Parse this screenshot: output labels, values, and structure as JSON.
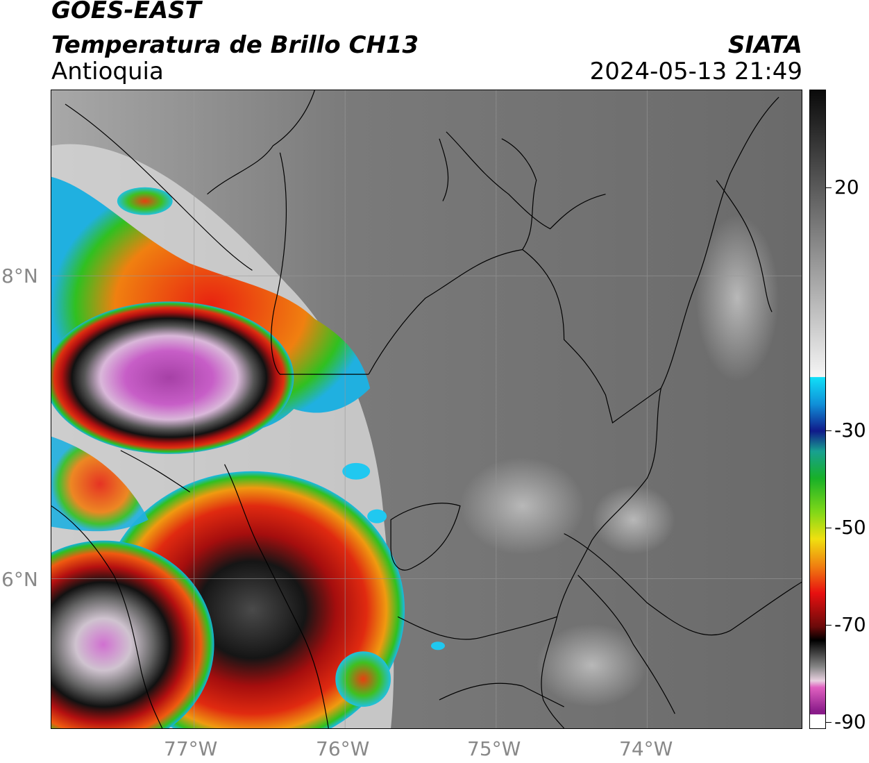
{
  "header": {
    "line1": "GOES-EAST",
    "line2": "Temperatura de Brillo CH13",
    "line3": "Antioquia",
    "agency": "SIATA",
    "datetime": "2024-05-13 21:49"
  },
  "map": {
    "lat_labels": [
      "8°N",
      "6°N"
    ],
    "lon_labels": [
      "77°W",
      "76°W",
      "75°W",
      "74°W"
    ]
  },
  "colorbar": {
    "tick_labels": [
      "20",
      "-30",
      "-50",
      "-70",
      "-90"
    ]
  },
  "colors": {
    "graticule": "#888888",
    "cold_magenta": "#c154c1",
    "deep_convection_red": "#e01010",
    "green": "#21c021",
    "cyan": "#00d0ff",
    "background_gray": "#6e6e6e"
  }
}
